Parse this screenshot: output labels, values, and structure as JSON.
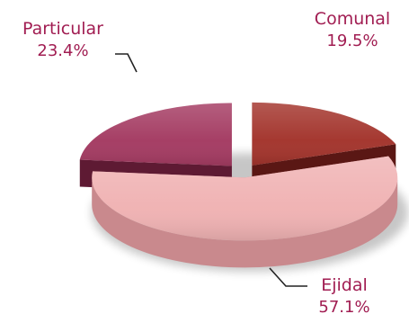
{
  "chart_data": {
    "type": "pie",
    "title": "",
    "legend": "none",
    "slices": [
      {
        "label": "Comunal",
        "value": 19.5,
        "value_label": "19.5%",
        "color": "#a3342c",
        "side_color": "#5a1714"
      },
      {
        "label": "Ejidal",
        "value": 57.1,
        "value_label": "57.1%",
        "color": "#f0b2b3",
        "side_color": "#c9898d"
      },
      {
        "label": "Particular",
        "value": 23.4,
        "value_label": "23.4%",
        "color": "#a43b62",
        "side_color": "#5e1a33"
      }
    ],
    "label_color": "#a11d52"
  }
}
